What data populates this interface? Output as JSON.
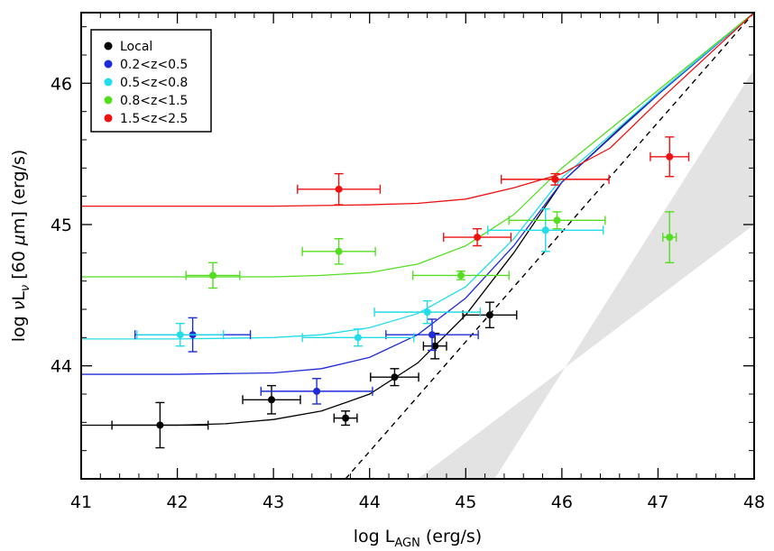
{
  "chart_data": {
    "type": "scatter",
    "xlabel_parts": [
      "log L",
      "AGN",
      " (erg/s)"
    ],
    "ylabel_parts": [
      "log ",
      "ν",
      "L",
      "ν",
      " [60 ",
      "μ",
      "m] (erg/s)"
    ],
    "xlim": [
      41,
      48
    ],
    "ylim": [
      43.2,
      46.5
    ],
    "xticks": [
      41,
      42,
      43,
      44,
      45,
      46,
      47,
      48
    ],
    "xtick_labels": [
      "41",
      "42",
      "43",
      "44",
      "45",
      "46",
      "47",
      "48"
    ],
    "yticks": [
      44,
      45,
      46
    ],
    "ytick_labels": [
      "44",
      "45",
      "46"
    ],
    "legend_position": "top-left",
    "shaded_band": {
      "color": "#e3e3e3",
      "polygon": [
        [
          44.5,
          43.2
        ],
        [
          45.3,
          43.2
        ],
        [
          48,
          46.1
        ],
        [
          48,
          45.0
        ]
      ]
    },
    "reference_line": {
      "style": "dashed",
      "color": "#000000",
      "x": [
        43.75,
        48
      ],
      "y": [
        43.2,
        46.5
      ]
    },
    "series": [
      {
        "name": "Local",
        "color": "#000000",
        "curve_x": [
          41.0,
          42.0,
          42.5,
          43.0,
          43.5,
          44.0,
          44.5,
          45.0,
          45.5,
          46.0,
          47.0,
          48.0
        ],
        "curve_y": [
          43.58,
          43.58,
          43.59,
          43.62,
          43.68,
          43.8,
          44.02,
          44.36,
          44.8,
          45.3,
          45.93,
          46.5
        ],
        "points": [
          {
            "x": 41.82,
            "y": 43.58,
            "xerr": 0.5,
            "yerr": 0.16
          },
          {
            "x": 42.98,
            "y": 43.76,
            "xerr": 0.3,
            "yerr": 0.1
          },
          {
            "x": 43.75,
            "y": 43.63,
            "xerr": 0.12,
            "yerr": 0.05
          },
          {
            "x": 44.26,
            "y": 43.92,
            "xerr": 0.25,
            "yerr": 0.06
          },
          {
            "x": 44.68,
            "y": 44.14,
            "xerr": 0.12,
            "yerr": 0.09
          },
          {
            "x": 45.25,
            "y": 44.36,
            "xerr": 0.28,
            "yerr": 0.09
          }
        ]
      },
      {
        "name": "0.2<z<0.5",
        "color": "#1f2bd6",
        "curve_x": [
          41.0,
          42.0,
          43.0,
          43.5,
          44.0,
          44.5,
          45.0,
          45.5,
          46.0,
          47.0,
          48.0
        ],
        "curve_y": [
          43.94,
          43.94,
          43.95,
          43.98,
          44.06,
          44.22,
          44.48,
          44.85,
          45.3,
          45.92,
          46.5
        ],
        "points": [
          {
            "x": 42.16,
            "y": 44.22,
            "xerr": 0.6,
            "yerr": 0.12
          },
          {
            "x": 43.45,
            "y": 43.82,
            "xerr": 0.58,
            "yerr": 0.09
          },
          {
            "x": 44.65,
            "y": 44.22,
            "xerr": 0.48,
            "yerr": 0.11
          }
        ]
      },
      {
        "name": "0.5<z<0.8",
        "color": "#22dcea",
        "curve_x": [
          41.0,
          42.0,
          43.0,
          43.5,
          44.0,
          44.5,
          45.0,
          45.5,
          46.0,
          47.0,
          48.0
        ],
        "curve_y": [
          44.19,
          44.19,
          44.2,
          44.22,
          44.27,
          44.37,
          44.56,
          44.9,
          45.33,
          45.93,
          46.5
        ],
        "points": [
          {
            "x": 42.03,
            "y": 44.22,
            "xerr": 0.45,
            "yerr": 0.08
          },
          {
            "x": 43.88,
            "y": 44.2,
            "xerr": 0.58,
            "yerr": 0.06
          },
          {
            "x": 44.6,
            "y": 44.38,
            "xerr": 0.55,
            "yerr": 0.08
          },
          {
            "x": 45.83,
            "y": 44.96,
            "xerr": 0.6,
            "yerr": 0.15
          }
        ]
      },
      {
        "name": "0.8<z<1.5",
        "color": "#55dd22",
        "curve_x": [
          41.0,
          42.0,
          43.0,
          43.5,
          44.0,
          44.5,
          45.0,
          45.5,
          46.0,
          47.0,
          48.0
        ],
        "curve_y": [
          44.63,
          44.63,
          44.63,
          44.64,
          44.66,
          44.72,
          44.85,
          45.07,
          45.4,
          45.95,
          46.5
        ],
        "points": [
          {
            "x": 42.37,
            "y": 44.64,
            "xerr": 0.28,
            "yerr": 0.09
          },
          {
            "x": 43.68,
            "y": 44.81,
            "xerr": 0.38,
            "yerr": 0.09
          },
          {
            "x": 44.95,
            "y": 44.64,
            "xerr": 0.5,
            "yerr": 0.03
          },
          {
            "x": 45.95,
            "y": 45.03,
            "xerr": 0.5,
            "yerr": 0.06
          },
          {
            "x": 47.12,
            "y": 44.91,
            "xerr": 0.07,
            "yerr": 0.18
          }
        ]
      },
      {
        "name": "1.5<z<2.5",
        "color": "#ee1111",
        "curve_x": [
          41.0,
          42.0,
          43.0,
          44.0,
          44.5,
          45.0,
          45.5,
          46.0,
          46.5,
          47.0,
          48.0
        ],
        "curve_y": [
          45.13,
          45.13,
          45.13,
          45.14,
          45.15,
          45.18,
          45.26,
          45.36,
          45.54,
          45.87,
          46.5
        ],
        "points": [
          {
            "x": 43.68,
            "y": 45.25,
            "xerr": 0.43,
            "yerr": 0.11
          },
          {
            "x": 45.12,
            "y": 44.91,
            "xerr": 0.35,
            "yerr": 0.06
          },
          {
            "x": 45.93,
            "y": 45.32,
            "xerr": 0.56,
            "yerr": 0.04
          },
          {
            "x": 47.12,
            "y": 45.48,
            "xerr": 0.2,
            "yerr": 0.14
          }
        ]
      }
    ]
  }
}
